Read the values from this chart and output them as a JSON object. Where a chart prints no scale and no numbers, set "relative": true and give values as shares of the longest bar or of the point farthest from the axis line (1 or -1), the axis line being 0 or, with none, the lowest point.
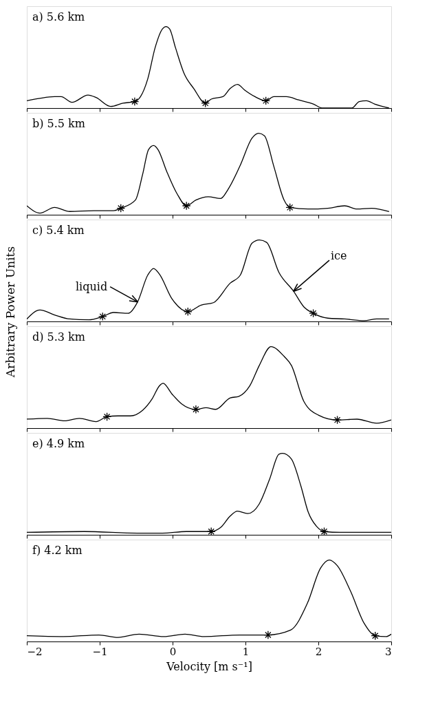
{
  "chart_data": [
    {
      "type": "line",
      "title": "a) 5.6 km",
      "relative": true,
      "xlim": [
        -2,
        3
      ],
      "xticks": [
        -2,
        -1,
        0,
        1,
        2,
        3
      ],
      "tick_labels": false,
      "x": [
        -2.0,
        -1.82,
        -1.62,
        -1.53,
        -1.38,
        -1.16,
        -1.05,
        -0.85,
        -0.68,
        -0.52,
        -0.44,
        -0.34,
        -0.24,
        -0.14,
        -0.09,
        -0.04,
        0.04,
        0.16,
        0.29,
        0.45,
        0.53,
        0.69,
        0.79,
        0.89,
        0.99,
        1.13,
        1.28,
        1.39,
        1.56,
        1.73,
        1.93,
        2.06,
        2.46,
        2.56,
        2.66,
        2.77,
        2.97
      ],
      "series": [
        {
          "color": "#000000",
          "values": [
            0.09,
            0.12,
            0.14,
            0.14,
            0.07,
            0.16,
            0.13,
            0.02,
            0.06,
            0.08,
            0.14,
            0.36,
            0.74,
            0.97,
            1.0,
            0.97,
            0.74,
            0.42,
            0.24,
            0.06,
            0.11,
            0.14,
            0.24,
            0.29,
            0.22,
            0.14,
            0.09,
            0.14,
            0.14,
            0.1,
            0.05,
            0.0,
            0.0,
            0.08,
            0.09,
            0.05,
            0.0
          ]
        },
        {
          "type": "scatter",
          "marker": "cross",
          "color": "#000000",
          "x": [
            -0.52,
            0.45,
            1.28
          ],
          "values": [
            0.08,
            0.06,
            0.09
          ]
        }
      ]
    },
    {
      "type": "line",
      "title": "b) 5.5 km",
      "relative": true,
      "xlim": [
        -2,
        3
      ],
      "xticks": [
        -2,
        -1,
        0,
        1,
        2,
        3
      ],
      "tick_labels": false,
      "x": [
        -2.0,
        -1.82,
        -1.62,
        -1.41,
        -1.08,
        -0.81,
        -0.71,
        -0.51,
        -0.41,
        -0.33,
        -0.26,
        -0.2,
        -0.08,
        0.06,
        0.19,
        0.32,
        0.49,
        0.66,
        0.76,
        0.93,
        1.09,
        1.18,
        1.26,
        1.39,
        1.53,
        1.61,
        1.86,
        2.13,
        2.36,
        2.53,
        2.73,
        2.97
      ],
      "series": [
        {
          "color": "#000000",
          "values": [
            0.11,
            0.02,
            0.09,
            0.04,
            0.05,
            0.05,
            0.08,
            0.18,
            0.5,
            0.8,
            0.85,
            0.8,
            0.53,
            0.26,
            0.11,
            0.18,
            0.22,
            0.2,
            0.31,
            0.61,
            0.94,
            1.0,
            0.97,
            0.59,
            0.18,
            0.09,
            0.07,
            0.08,
            0.11,
            0.07,
            0.08,
            0.04
          ]
        },
        {
          "type": "scatter",
          "marker": "cross",
          "color": "#000000",
          "x": [
            -0.71,
            0.19,
            1.61
          ],
          "values": [
            0.08,
            0.11,
            0.09
          ]
        }
      ]
    },
    {
      "type": "line",
      "title": "c) 5.4 km",
      "ylabel": "Arbitrary Power Units",
      "relative": true,
      "xlim": [
        -2,
        3
      ],
      "xticks": [
        -2,
        -1,
        0,
        1,
        2,
        3
      ],
      "tick_labels": false,
      "annotations": [
        {
          "text": "liquid",
          "x": -0.48,
          "y": 0.24
        },
        {
          "text": "ice",
          "x": 1.66,
          "y": 0.37
        }
      ],
      "x": [
        -2.0,
        -1.82,
        -1.62,
        -1.41,
        -1.15,
        -0.96,
        -0.81,
        -0.61,
        -0.48,
        -0.34,
        -0.26,
        -0.18,
        -0.01,
        0.21,
        0.39,
        0.56,
        0.79,
        0.93,
        1.09,
        1.19,
        1.29,
        1.46,
        1.66,
        1.8,
        1.93,
        2.13,
        2.36,
        2.63,
        2.8,
        2.97
      ],
      "series": [
        {
          "color": "#000000",
          "values": [
            0.03,
            0.14,
            0.08,
            0.03,
            0.02,
            0.06,
            0.11,
            0.1,
            0.24,
            0.57,
            0.65,
            0.58,
            0.28,
            0.12,
            0.2,
            0.23,
            0.47,
            0.57,
            0.96,
            1.0,
            0.97,
            0.6,
            0.37,
            0.18,
            0.1,
            0.04,
            0.03,
            0.01,
            0.03,
            0.03
          ]
        },
        {
          "type": "scatter",
          "marker": "cross",
          "color": "#000000",
          "x": [
            -0.96,
            0.21,
            1.93
          ],
          "values": [
            0.06,
            0.12,
            0.1
          ]
        }
      ]
    },
    {
      "type": "line",
      "title": "d) 5.3 km",
      "relative": true,
      "xlim": [
        -2,
        3
      ],
      "xticks": [
        -2,
        -1,
        0,
        1,
        2,
        3
      ],
      "tick_labels": false,
      "x": [
        -2.0,
        -1.72,
        -1.48,
        -1.28,
        -1.05,
        -0.9,
        -0.75,
        -0.58,
        -0.41,
        -0.28,
        -0.18,
        -0.13,
        -0.01,
        0.12,
        0.32,
        0.46,
        0.59,
        0.79,
        0.91,
        1.06,
        1.19,
        1.35,
        1.53,
        1.63,
        1.8,
        2.0,
        2.26,
        2.53,
        2.8,
        3.0
      ],
      "series": [
        {
          "color": "#000000",
          "values": [
            0.11,
            0.12,
            0.09,
            0.12,
            0.08,
            0.14,
            0.15,
            0.15,
            0.22,
            0.36,
            0.52,
            0.55,
            0.42,
            0.3,
            0.23,
            0.25,
            0.23,
            0.37,
            0.39,
            0.52,
            0.77,
            1.0,
            0.88,
            0.77,
            0.33,
            0.16,
            0.1,
            0.11,
            0.06,
            0.1
          ]
        },
        {
          "type": "scatter",
          "marker": "cross",
          "color": "#000000",
          "x": [
            -0.9,
            0.32,
            2.26
          ],
          "values": [
            0.14,
            0.23,
            0.1
          ]
        }
      ]
    },
    {
      "type": "line",
      "title": "e) 4.9 km",
      "relative": true,
      "xlim": [
        -2,
        3
      ],
      "xticks": [
        -2,
        -1,
        0,
        1,
        2,
        3
      ],
      "tick_labels": false,
      "x": [
        -2.0,
        -1.21,
        -0.48,
        -0.14,
        0.19,
        0.53,
        0.66,
        0.79,
        0.89,
        1.03,
        1.19,
        1.33,
        1.46,
        1.51,
        1.63,
        1.76,
        1.86,
        1.99,
        2.08,
        2.3,
        3.0
      ],
      "series": [
        {
          "color": "#000000",
          "values": [
            0.03,
            0.04,
            0.02,
            0.02,
            0.04,
            0.04,
            0.09,
            0.23,
            0.29,
            0.26,
            0.38,
            0.68,
            0.99,
            1.0,
            0.93,
            0.6,
            0.28,
            0.09,
            0.04,
            0.03,
            0.03
          ]
        },
        {
          "type": "scatter",
          "marker": "cross",
          "color": "#000000",
          "x": [
            0.53,
            2.08
          ],
          "values": [
            0.04,
            0.04
          ]
        }
      ]
    },
    {
      "type": "line",
      "title": "f) 4.2 km",
      "xlabel": "Velocity [m s⁻¹]",
      "relative": true,
      "xlim": [
        -2,
        3
      ],
      "xticks": [
        -2,
        -1,
        0,
        1,
        2,
        3
      ],
      "tick_labels": "x",
      "x": [
        -2.0,
        -1.5,
        -1.01,
        -0.75,
        -0.46,
        -0.12,
        0.17,
        0.43,
        0.92,
        1.31,
        1.62,
        1.85,
        2.03,
        2.15,
        2.26,
        2.44,
        2.63,
        2.78,
        2.93,
        3.0
      ],
      "series": [
        {
          "color": "#000000",
          "values": [
            0.07,
            0.06,
            0.08,
            0.05,
            0.09,
            0.06,
            0.09,
            0.06,
            0.08,
            0.08,
            0.14,
            0.47,
            0.9,
            1.0,
            0.93,
            0.62,
            0.22,
            0.07,
            0.06,
            0.09
          ]
        },
        {
          "type": "scatter",
          "marker": "cross",
          "color": "#000000",
          "x": [
            1.31,
            2.78
          ],
          "values": [
            0.08,
            0.07
          ]
        }
      ]
    }
  ]
}
